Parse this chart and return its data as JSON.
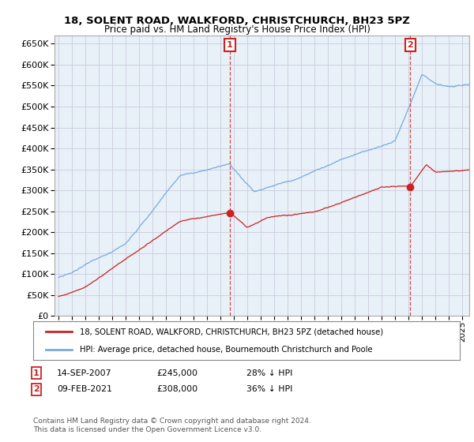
{
  "title": "18, SOLENT ROAD, WALKFORD, CHRISTCHURCH, BH23 5PZ",
  "subtitle": "Price paid vs. HM Land Registry's House Price Index (HPI)",
  "ylim": [
    0,
    670000
  ],
  "yticks": [
    0,
    50000,
    100000,
    150000,
    200000,
    250000,
    300000,
    350000,
    400000,
    450000,
    500000,
    550000,
    600000,
    650000
  ],
  "hpi_color": "#7aaadd",
  "price_color": "#cc2222",
  "grid_color": "#ccccdd",
  "bg_color": "#ffffff",
  "plot_bg_color": "#e8f0f8",
  "marker1_x": 2007.72,
  "marker1_y": 245000,
  "marker2_x": 2021.12,
  "marker2_y": 308000,
  "legend_line1": "18, SOLENT ROAD, WALKFORD, CHRISTCHURCH, BH23 5PZ (detached house)",
  "legend_line2": "HPI: Average price, detached house, Bournemouth Christchurch and Poole",
  "marker1_date": "14-SEP-2007",
  "marker1_price": "£245,000",
  "marker1_hpi_text": "28% ↓ HPI",
  "marker2_date": "09-FEB-2021",
  "marker2_price": "£308,000",
  "marker2_hpi_text": "36% ↓ HPI",
  "footnote": "Contains HM Land Registry data © Crown copyright and database right 2024.\nThis data is licensed under the Open Government Licence v3.0.",
  "xmin": 1994.7,
  "xmax": 2025.5
}
